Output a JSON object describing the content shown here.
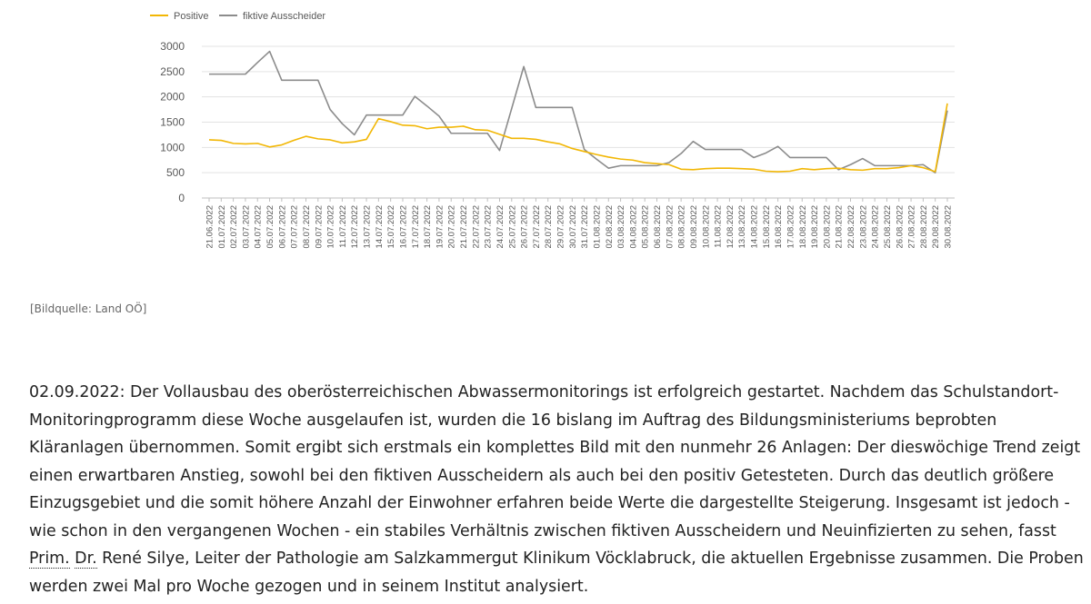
{
  "chart_data": {
    "type": "line",
    "title": "",
    "xlabel": "",
    "ylabel": "",
    "ylim": [
      0,
      3000
    ],
    "yticks": [
      0,
      500,
      1000,
      1500,
      2000,
      2500,
      3000
    ],
    "grid": "horizontal",
    "legend_position": "top-left",
    "categories": [
      "21.06.2022",
      "01.07.2022",
      "02.07.2022",
      "03.07.2022",
      "04.07.2022",
      "05.07.2022",
      "06.07.2022",
      "07.07.2022",
      "08.07.2022",
      "09.07.2022",
      "10.07.2022",
      "11.07.2022",
      "12.07.2022",
      "13.07.2022",
      "14.07.2022",
      "15.07.2022",
      "16.07.2022",
      "17.07.2022",
      "18.07.2022",
      "19.07.2022",
      "20.07.2022",
      "21.07.2022",
      "22.07.2022",
      "23.07.2022",
      "24.07.2022",
      "25.07.2022",
      "26.07.2022",
      "27.07.2022",
      "28.07.2022",
      "29.07.2022",
      "30.07.2022",
      "31.07.2022",
      "01.08.2022",
      "02.08.2022",
      "03.08.2022",
      "04.08.2022",
      "05.08.2022",
      "06.08.2022",
      "07.08.2022",
      "08.08.2022",
      "09.08.2022",
      "10.08.2022",
      "11.08.2022",
      "12.08.2022",
      "13.08.2022",
      "14.08.2022",
      "15.08.2022",
      "16.08.2022",
      "17.08.2022",
      "18.08.2022",
      "19.08.2022",
      "20.08.2022",
      "21.08.2022",
      "22.08.2022",
      "23.08.2022",
      "24.08.2022",
      "25.08.2022",
      "26.08.2022",
      "27.08.2022",
      "28.08.2022",
      "29.08.2022",
      "30.08.2022"
    ],
    "series": [
      {
        "name": "Positive",
        "color": "#f2b705",
        "values": [
          1150,
          1140,
          1080,
          1070,
          1080,
          1010,
          1050,
          1140,
          1220,
          1170,
          1150,
          1090,
          1110,
          1160,
          1570,
          1510,
          1440,
          1430,
          1370,
          1400,
          1400,
          1420,
          1350,
          1340,
          1260,
          1180,
          1180,
          1160,
          1110,
          1070,
          980,
          920,
          860,
          810,
          770,
          750,
          700,
          680,
          660,
          570,
          560,
          580,
          590,
          590,
          580,
          570,
          530,
          520,
          530,
          580,
          560,
          580,
          590,
          560,
          550,
          580,
          580,
          600,
          640,
          600,
          520,
          1870
        ]
      },
      {
        "name": "fiktive Ausscheider",
        "color": "#8c8c8c",
        "values": [
          2450,
          2450,
          2450,
          2450,
          2680,
          2900,
          2330,
          2330,
          2330,
          2330,
          1750,
          1470,
          1250,
          1640,
          1640,
          1640,
          1640,
          2010,
          1820,
          1620,
          1280,
          1280,
          1280,
          1280,
          940,
          1770,
          2600,
          1790,
          1790,
          1790,
          1790,
          960,
          770,
          590,
          640,
          640,
          640,
          640,
          700,
          880,
          1120,
          960,
          960,
          960,
          960,
          800,
          890,
          1020,
          800,
          800,
          800,
          800,
          560,
          660,
          780,
          640,
          640,
          640,
          640,
          660,
          500,
          1730
        ]
      }
    ]
  },
  "caption": "[Bildquelle: Land OÖ]",
  "article": {
    "text_before": "02.09.2022: Der Vollausbau des oberösterreichischen Abwassermonitorings ist erfolgreich gestartet. Nachdem das Schulstandort-Monitoringprogramm diese Woche ausgelaufen ist, wurden die 16 bislang im Auftrag des Bildungsministeriums beprobten Kläranlagen übernommen. Somit ergibt sich erstmals ein komplettes Bild mit den nunmehr 26 Anlagen: Der dieswöchige Trend zeigt einen erwartbaren Anstieg, sowohl bei den fiktiven Ausscheidern als auch bei den  positiv Getesteten. Durch das deutlich größere Einzugsgebiet und die somit höhere Anzahl der Einwohner erfahren beide Werte die dargestellte Steigerung. Insgesamt ist jedoch - wie schon in den vergangenen Wochen - ein stabiles Verhältnis zwischen fiktiven Ausscheidern und Neuinfizierten zu sehen, fasst ",
    "abbr_prim": "Prim.",
    "abbr_dr": "Dr.",
    "text_after": " René Silye, Leiter der Pathologie am Salzkammergut Klinikum Vöcklabruck, die aktuellen Ergebnisse zusammen. Die Proben werden zwei Mal pro Woche gezogen und in seinem Institut analysiert."
  }
}
